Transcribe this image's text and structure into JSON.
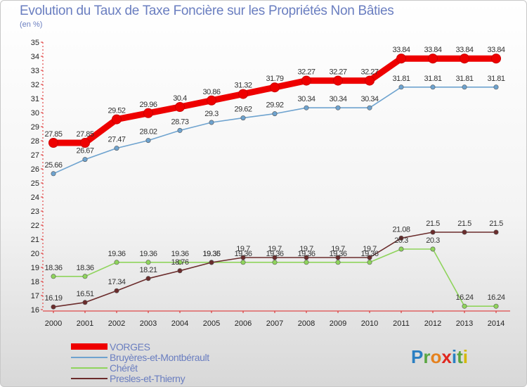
{
  "header": {
    "title": "Evolution du Taux de Taxe Foncière sur les Propriétés Non Bâties",
    "subtitle": "(en %)"
  },
  "chart_data": {
    "type": "line",
    "title": "Evolution du Taux de Taxe Foncière sur les Propriétés Non Bâties",
    "ylabel": "(en %)",
    "xlabel": "",
    "x": [
      "2000",
      "2001",
      "2002",
      "2003",
      "2004",
      "2005",
      "2006",
      "2007",
      "2008",
      "2009",
      "2010",
      "2011",
      "2012",
      "2013",
      "2014"
    ],
    "ylim": [
      16,
      35
    ],
    "yticks": [
      16,
      17,
      18,
      19,
      20,
      21,
      22,
      23,
      24,
      25,
      26,
      27,
      28,
      29,
      30,
      31,
      32,
      33,
      34,
      35
    ],
    "grid": false,
    "legend_position": "bottom-left",
    "series": [
      {
        "name": "VORGES",
        "color": "#ee0000",
        "values": [
          27.85,
          27.85,
          29.52,
          29.96,
          30.4,
          30.86,
          31.32,
          31.79,
          32.27,
          32.27,
          32.27,
          33.84,
          33.84,
          33.84,
          33.84
        ],
        "labels": [
          "27.85",
          "27.85",
          "29.52",
          "29.96",
          "30.4",
          "30.86",
          "31.32",
          "31.79",
          "32.27",
          "32.27",
          "32.27",
          "33.84",
          "33.84",
          "33.84",
          "33.84"
        ]
      },
      {
        "name": "Bruyères-et-Montbérault",
        "color": "#6ea3cf",
        "values": [
          25.66,
          26.67,
          27.47,
          28.02,
          28.73,
          29.3,
          29.62,
          29.92,
          30.34,
          30.34,
          30.34,
          31.81,
          31.81,
          31.81,
          31.81
        ],
        "labels": [
          "25.66",
          "26.67",
          "27.47",
          "28.02",
          "28.73",
          "29.3",
          "29.62",
          "29.92",
          "30.34",
          "30.34",
          "30.34",
          "31.81",
          "31.81",
          "31.81",
          "31.81"
        ]
      },
      {
        "name": "Chérêt",
        "color": "#8fd45c",
        "values": [
          18.36,
          18.36,
          19.36,
          19.36,
          19.36,
          19.36,
          19.36,
          19.36,
          19.36,
          19.36,
          19.36,
          20.3,
          20.3,
          16.24,
          16.24
        ],
        "labels": [
          "18.36",
          "18.36",
          "19.36",
          "19.36",
          "19.36",
          "19.36",
          "19.36",
          "19.36",
          "19.36",
          "19.36",
          "19.36",
          "20.3",
          "20.3",
          "16.24",
          "16.24"
        ]
      },
      {
        "name": "Presles-et-Thierny",
        "color": "#6b2c2c",
        "values": [
          16.19,
          16.51,
          17.34,
          18.21,
          18.76,
          19.35,
          19.7,
          19.7,
          19.7,
          19.7,
          19.7,
          21.08,
          21.5,
          21.5,
          21.5
        ],
        "labels": [
          "16.19",
          "16.51",
          "17.34",
          "18.21",
          "18.76",
          "19.35",
          "19.7",
          "19.7",
          "19.7",
          "19.7",
          "19.7",
          "21.08",
          "21.5",
          "21.5",
          "21.5"
        ]
      }
    ]
  },
  "logo": {
    "text": "Proxiti"
  }
}
